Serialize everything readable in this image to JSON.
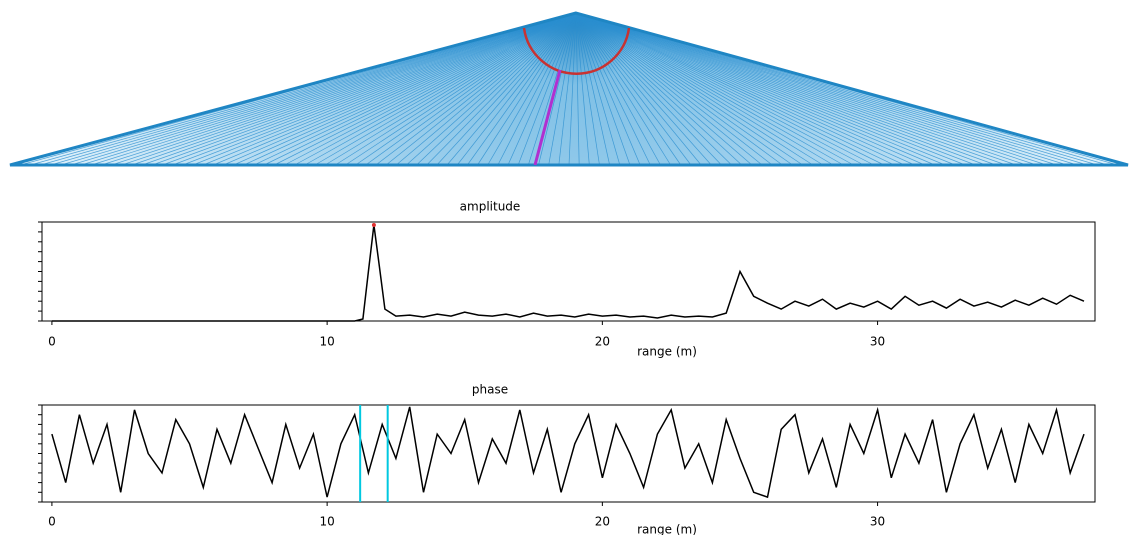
{
  "chart_data": [
    {
      "type": "line",
      "title": "amplitude",
      "xlabel": "range (m)",
      "color": "#000000",
      "peak_color": "#e03030",
      "x": [
        0,
        0.5,
        1,
        1.5,
        2,
        2.5,
        3,
        3.5,
        4,
        4.5,
        5,
        5.5,
        6,
        6.5,
        7,
        7.5,
        8,
        8.5,
        9,
        9.5,
        10,
        10.5,
        11,
        11.3,
        11.5,
        11.7,
        11.9,
        12.1,
        12.5,
        13,
        13.5,
        14,
        14.5,
        15,
        15.5,
        16,
        16.5,
        17,
        17.5,
        18,
        18.5,
        19,
        19.5,
        20,
        20.5,
        21,
        21.5,
        22,
        22.5,
        23,
        23.5,
        24,
        24.5,
        25,
        25.5,
        26,
        26.5,
        27,
        27.5,
        28,
        28.5,
        29,
        29.5,
        30,
        30.5,
        31,
        31.5,
        32,
        32.5,
        33,
        33.5,
        34,
        34.5,
        35,
        35.5,
        36,
        36.5,
        37,
        37.5
      ],
      "values": [
        0,
        0,
        0,
        0,
        0,
        0,
        0,
        0,
        0,
        0,
        0,
        0,
        0,
        0,
        0,
        0,
        0,
        0,
        0,
        0,
        0,
        0,
        0,
        0.02,
        0.5,
        0.97,
        0.55,
        0.12,
        0.05,
        0.06,
        0.04,
        0.07,
        0.05,
        0.09,
        0.06,
        0.05,
        0.07,
        0.04,
        0.08,
        0.05,
        0.06,
        0.04,
        0.07,
        0.05,
        0.06,
        0.04,
        0.05,
        0.03,
        0.06,
        0.04,
        0.05,
        0.04,
        0.08,
        0.5,
        0.25,
        0.18,
        0.12,
        0.2,
        0.15,
        0.22,
        0.12,
        0.18,
        0.14,
        0.2,
        0.12,
        0.25,
        0.16,
        0.2,
        0.13,
        0.22,
        0.15,
        0.19,
        0.14,
        0.21,
        0.16,
        0.23,
        0.17,
        0.26,
        0.2
      ],
      "xlim": [
        -0.36,
        37.9
      ],
      "ylim": [
        0,
        1
      ],
      "xticks": [
        0,
        10,
        20,
        30
      ],
      "yticks": [
        0,
        0.1,
        0.2,
        0.3,
        0.4,
        0.5,
        0.6,
        0.7,
        0.8,
        0.9,
        1
      ]
    },
    {
      "type": "line",
      "title": "phase",
      "xlabel": "range (m)",
      "color": "#000000",
      "marker_color": "#00c8e0",
      "markers": [
        11.2,
        12.2
      ],
      "x": [
        0,
        0.5,
        1,
        1.5,
        2,
        2.5,
        3,
        3.5,
        4,
        4.5,
        5,
        5.5,
        6,
        6.5,
        7,
        7.5,
        8,
        8.5,
        9,
        9.5,
        10,
        10.5,
        11,
        11.5,
        12,
        12.5,
        13,
        13.5,
        14,
        14.5,
        15,
        15.5,
        16,
        16.5,
        17,
        17.5,
        18,
        18.5,
        19,
        19.5,
        20,
        20.5,
        21,
        21.5,
        22,
        22.5,
        23,
        23.5,
        24,
        24.5,
        25,
        25.5,
        26,
        26.5,
        27,
        27.5,
        28,
        28.5,
        29,
        29.5,
        30,
        30.5,
        31,
        31.5,
        32,
        32.5,
        33,
        33.5,
        34,
        34.5,
        35,
        35.5,
        36,
        36.5,
        37,
        37.5
      ],
      "values": [
        0.7,
        0.2,
        0.9,
        0.4,
        0.8,
        0.1,
        0.95,
        0.5,
        0.3,
        0.85,
        0.6,
        0.15,
        0.75,
        0.4,
        0.9,
        0.55,
        0.2,
        0.8,
        0.35,
        0.7,
        0.05,
        0.6,
        0.9,
        0.3,
        0.8,
        0.45,
        0.98,
        0.1,
        0.7,
        0.5,
        0.85,
        0.2,
        0.65,
        0.4,
        0.95,
        0.3,
        0.75,
        0.1,
        0.6,
        0.9,
        0.25,
        0.8,
        0.5,
        0.15,
        0.7,
        0.95,
        0.35,
        0.6,
        0.2,
        0.85,
        0.45,
        0.1,
        0.05,
        0.75,
        0.9,
        0.3,
        0.65,
        0.15,
        0.8,
        0.5,
        0.95,
        0.25,
        0.7,
        0.4,
        0.85,
        0.1,
        0.6,
        0.9,
        0.35,
        0.75,
        0.2,
        0.8,
        0.5,
        0.95,
        0.3,
        0.7
      ],
      "xlim": [
        -0.36,
        37.9
      ],
      "ylim": [
        0,
        1
      ],
      "xticks": [
        0,
        10,
        20,
        30
      ],
      "yticks": [
        0,
        0.1,
        0.2,
        0.3,
        0.4,
        0.5,
        0.6,
        0.7,
        0.8,
        0.9,
        1
      ]
    }
  ]
}
